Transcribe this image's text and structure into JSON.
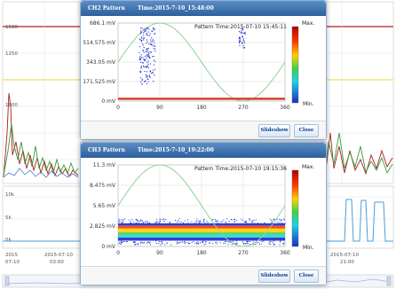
{
  "background": {
    "y_ticks_top": [
      "1500",
      "1250",
      "1000"
    ],
    "y_ticks_bottom": [
      "10k",
      "5k",
      "0k"
    ],
    "x_ticks": [
      {
        "line1": "2015",
        "line2": "07-10"
      },
      {
        "line1": "2015-07-10",
        "line2": "03:00"
      },
      {
        "line1": "2015-07-10",
        "line2": "21:00"
      }
    ]
  },
  "dialog1": {
    "title_label": "CH2 Pattern",
    "title_time": "Time:2015-7-10_15:48:00",
    "pattern_time": "Pattern Time:2015-07-10 15:45:11",
    "slideshow_label": "Slideshow",
    "close_label": "Close",
    "colorbar": {
      "max_label": "Max.",
      "min_label": "Min."
    }
  },
  "dialog2": {
    "title_label": "CH3 Pattern",
    "title_time": "Time:2015-7-10_19:22:00",
    "pattern_time": "Pattern Time:2015-07-10 19:15:36",
    "slideshow_label": "Slideshow",
    "close_label": "Close",
    "colorbar": {
      "max_label": "Max.",
      "min_label": "Min."
    }
  },
  "colors": {
    "title_bar": "#3a6ea5",
    "sine": "#8fd19e",
    "baseline": "#d03a1f",
    "scatter_blue": "#1f35c9",
    "scatter_red": "#d42a12"
  },
  "chart_data": [
    {
      "type": "scatter",
      "title": "Pattern Time:2015-07-10 15:45:11",
      "x_ticks": [
        "0",
        "90",
        "180",
        "270",
        "360"
      ],
      "y_ticks": [
        "0 mV",
        "171.525 mV",
        "343.05 mV",
        "514.575 mV",
        "686.1 mV"
      ],
      "xlim": [
        0,
        360
      ],
      "ylim": [
        0,
        686.1
      ],
      "reference": {
        "name": "sine",
        "type": "line",
        "amplitude_mV": 343.05,
        "offset_mV": 343.05
      },
      "baseline_mV": 20,
      "clusters": [
        {
          "x_range": [
            45,
            80
          ],
          "y_range": [
            150,
            650
          ],
          "count": 170
        },
        {
          "x_range": [
            260,
            275
          ],
          "y_range": [
            450,
            650
          ],
          "count": 40
        }
      ],
      "colorbar": [
        "Max.",
        "Min."
      ]
    },
    {
      "type": "scatter",
      "title": "Pattern Time:2015-07-10 19:15:36",
      "x_ticks": [
        "0",
        "90",
        "180",
        "270",
        "360"
      ],
      "y_ticks": [
        "0 mV",
        "2.825 mV",
        "5.65 mV",
        "8.475 mV",
        "11.3 mV"
      ],
      "xlim": [
        0,
        360
      ],
      "ylim": [
        0,
        11.3
      ],
      "reference": {
        "name": "sine",
        "type": "line",
        "amplitude_mV": 5.65,
        "offset_mV": 5.65
      },
      "band": {
        "y_range_mV": [
          0.8,
          3.2
        ]
      },
      "colorbar": [
        "Max.",
        "Min."
      ]
    }
  ]
}
